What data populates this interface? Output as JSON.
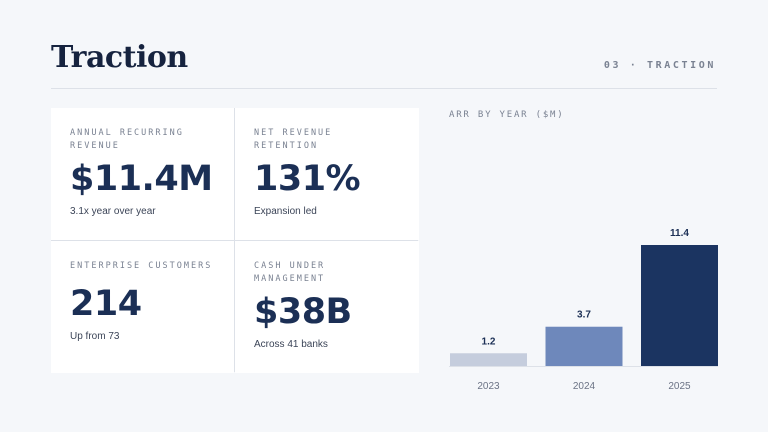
{
  "slide": {
    "title": "Traction",
    "section_label": "03 · TRACTION"
  },
  "metrics": [
    {
      "label": "ANNUAL RECURRING REVENUE",
      "value": "$11.4M",
      "sub": "3.1x year over year"
    },
    {
      "label": "NET REVENUE RETENTION",
      "value": "131%",
      "sub": "Expansion led"
    },
    {
      "label": "ENTERPRISE CUSTOMERS",
      "value": "214",
      "sub": "Up from 73"
    },
    {
      "label": "CASH UNDER MANAGEMENT",
      "value": "$38B",
      "sub": "Across 41 banks"
    }
  ],
  "chart_data": {
    "type": "bar",
    "title": "ARR BY YEAR ($M)",
    "categories": [
      "2023",
      "2024",
      "2025"
    ],
    "values": [
      1.2,
      3.7,
      11.4
    ],
    "data_labels": [
      "1.2",
      "3.7",
      "11.4"
    ],
    "colors": [
      "#c5cddd",
      "#6e88bb",
      "#1b3461"
    ],
    "ylim": [
      0,
      11.4
    ],
    "grid": false
  }
}
